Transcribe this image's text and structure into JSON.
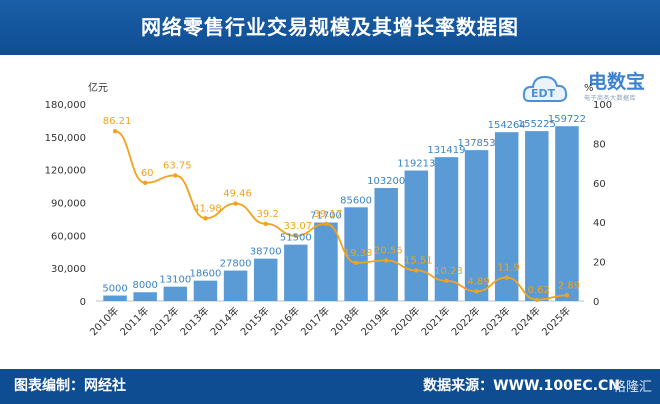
{
  "title": "网络零售行业交易规模及其增长率数据图",
  "footer": {
    "source_label": "图表编制：网经社",
    "data_label": "数据来源：WWW.100EC.CN"
  },
  "logo": {
    "brand": "电数宝",
    "sub": "电子商务大数据库",
    "mark": "EDT"
  },
  "watermark": "格隆汇",
  "colors": {
    "header": "#0f4d92",
    "bar": "#5b9bd5",
    "line": "#f2a21b",
    "bar_label": "#3b84c8"
  },
  "chart_data": {
    "type": "bar",
    "categories": [
      "2010年",
      "2011年",
      "2012年",
      "2013年",
      "2014年",
      "2015年",
      "2016年",
      "2017年",
      "2018年",
      "2019年",
      "2020年",
      "2021年",
      "2022年",
      "2023年",
      "2024年",
      "2025年"
    ],
    "series": [
      {
        "values": [
          5000,
          8000,
          13100,
          18600,
          27800,
          38700,
          51500,
          71700,
          85600,
          103200,
          119213,
          131419,
          137853,
          154264,
          155225,
          159722
        ],
        "axis": "left",
        "type": "bar"
      },
      {
        "values": [
          86.21,
          60,
          63.75,
          41.98,
          49.46,
          39.2,
          33.07,
          39.17,
          19.38,
          20.56,
          15.51,
          10.23,
          4.89,
          11.9,
          0.62,
          2.89
        ],
        "axis": "right",
        "type": "line"
      }
    ],
    "y_left": {
      "unit": "亿元",
      "ylim": [
        0,
        180000
      ],
      "ticks": [
        "0",
        "30,000",
        "60,000",
        "90,000",
        "120,000",
        "150,000",
        "180,000"
      ]
    },
    "y_right": {
      "unit": "%",
      "ylim": [
        0,
        100
      ],
      "ticks": [
        "0",
        "20",
        "40",
        "60",
        "80",
        "100"
      ]
    },
    "grid": false,
    "legend": "none"
  }
}
